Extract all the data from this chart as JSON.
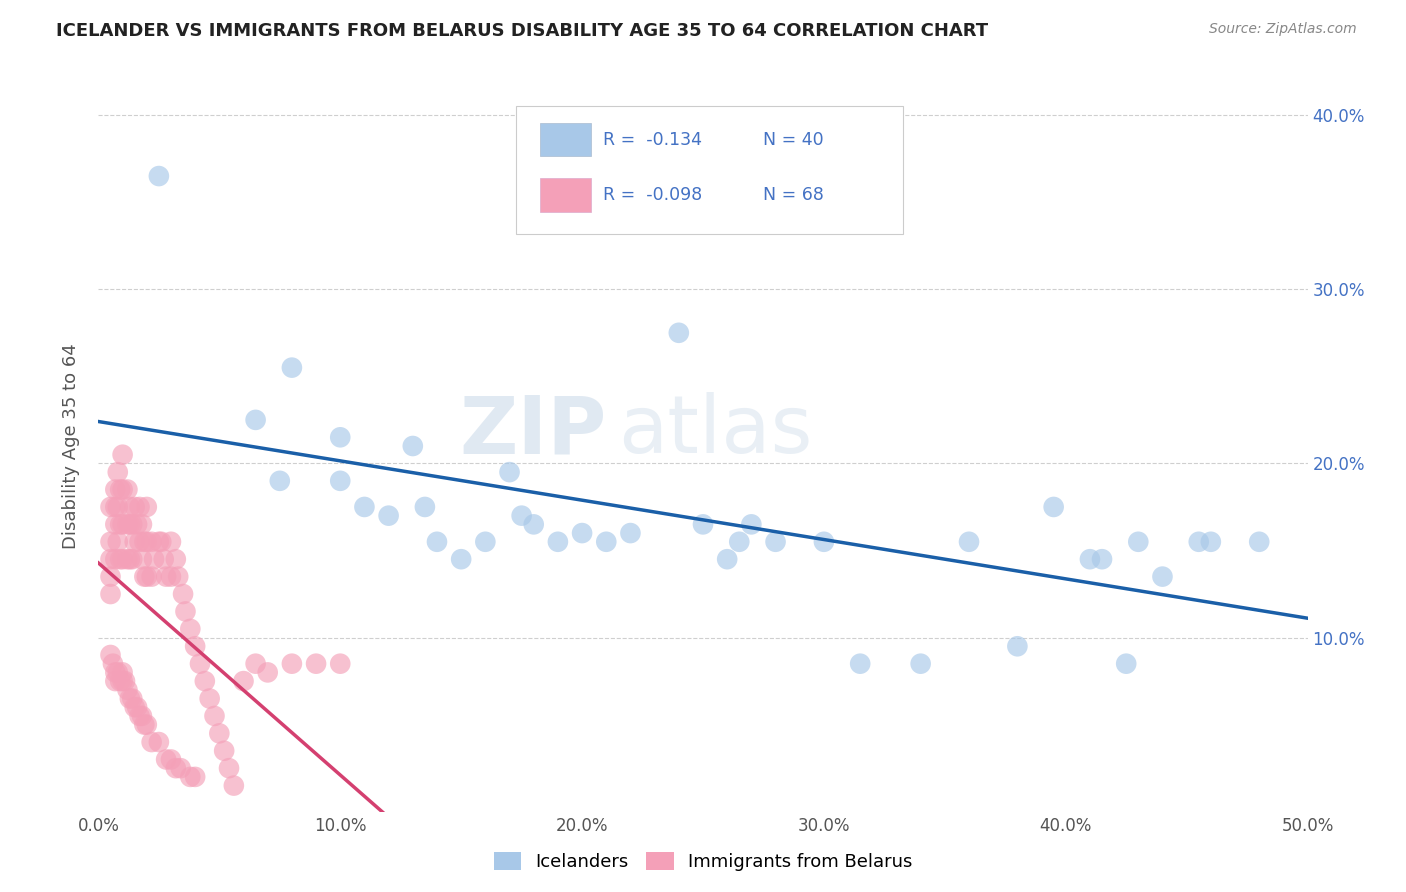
{
  "title": "ICELANDER VS IMMIGRANTS FROM BELARUS DISABILITY AGE 35 TO 64 CORRELATION CHART",
  "source_text": "Source: ZipAtlas.com",
  "ylabel": "Disability Age 35 to 64",
  "xlim": [
    0.0,
    0.5
  ],
  "ylim": [
    0.0,
    0.42
  ],
  "xtick_vals": [
    0.0,
    0.1,
    0.2,
    0.3,
    0.4,
    0.5
  ],
  "ytick_vals": [
    0.1,
    0.2,
    0.3,
    0.4
  ],
  "legend_r1": "R =  -0.134",
  "legend_n1": "N = 40",
  "legend_r2": "R =  -0.098",
  "legend_n2": "N = 68",
  "legend_label1": "Icelanders",
  "legend_label2": "Immigrants from Belarus",
  "blue_color": "#a8c8e8",
  "pink_color": "#f4a0b8",
  "blue_line_color": "#1a5fa8",
  "pink_line_color": "#d44070",
  "text_color": "#4472c4",
  "watermark_zip": "ZIP",
  "watermark_atlas": "atlas",
  "icelanders_x": [
    0.025,
    0.065,
    0.075,
    0.08,
    0.1,
    0.1,
    0.11,
    0.12,
    0.13,
    0.135,
    0.14,
    0.15,
    0.16,
    0.17,
    0.175,
    0.18,
    0.19,
    0.2,
    0.21,
    0.22,
    0.24,
    0.25,
    0.26,
    0.265,
    0.27,
    0.28,
    0.3,
    0.315,
    0.34,
    0.36,
    0.38,
    0.395,
    0.41,
    0.415,
    0.425,
    0.43,
    0.44,
    0.455,
    0.46,
    0.48
  ],
  "icelanders_y": [
    0.365,
    0.225,
    0.19,
    0.255,
    0.215,
    0.19,
    0.175,
    0.17,
    0.21,
    0.175,
    0.155,
    0.145,
    0.155,
    0.195,
    0.17,
    0.165,
    0.155,
    0.16,
    0.155,
    0.16,
    0.275,
    0.165,
    0.145,
    0.155,
    0.165,
    0.155,
    0.155,
    0.085,
    0.085,
    0.155,
    0.095,
    0.175,
    0.145,
    0.145,
    0.085,
    0.155,
    0.135,
    0.155,
    0.155,
    0.155
  ],
  "belarus_x": [
    0.005,
    0.005,
    0.005,
    0.005,
    0.005,
    0.007,
    0.007,
    0.007,
    0.007,
    0.008,
    0.008,
    0.008,
    0.009,
    0.009,
    0.009,
    0.01,
    0.01,
    0.01,
    0.01,
    0.012,
    0.012,
    0.012,
    0.013,
    0.013,
    0.013,
    0.014,
    0.014,
    0.015,
    0.015,
    0.016,
    0.017,
    0.017,
    0.018,
    0.018,
    0.019,
    0.019,
    0.02,
    0.02,
    0.02,
    0.022,
    0.022,
    0.023,
    0.025,
    0.026,
    0.027,
    0.028,
    0.03,
    0.03,
    0.032,
    0.033,
    0.035,
    0.036,
    0.038,
    0.04,
    0.042,
    0.044,
    0.046,
    0.048,
    0.05,
    0.052,
    0.054,
    0.056,
    0.06,
    0.065,
    0.07,
    0.08,
    0.09,
    0.1
  ],
  "belarus_y": [
    0.175,
    0.155,
    0.145,
    0.135,
    0.125,
    0.185,
    0.175,
    0.165,
    0.145,
    0.195,
    0.175,
    0.155,
    0.185,
    0.165,
    0.145,
    0.205,
    0.185,
    0.165,
    0.145,
    0.185,
    0.165,
    0.145,
    0.175,
    0.165,
    0.145,
    0.165,
    0.145,
    0.175,
    0.155,
    0.165,
    0.175,
    0.155,
    0.165,
    0.145,
    0.155,
    0.135,
    0.175,
    0.155,
    0.135,
    0.155,
    0.135,
    0.145,
    0.155,
    0.155,
    0.145,
    0.135,
    0.155,
    0.135,
    0.145,
    0.135,
    0.125,
    0.115,
    0.105,
    0.095,
    0.085,
    0.075,
    0.065,
    0.055,
    0.045,
    0.035,
    0.025,
    0.015,
    0.075,
    0.085,
    0.08,
    0.085,
    0.085,
    0.085
  ],
  "belarus_extra_x": [
    0.005,
    0.006,
    0.007,
    0.007,
    0.008,
    0.009,
    0.01,
    0.01,
    0.011,
    0.012,
    0.013,
    0.014,
    0.015,
    0.016,
    0.017,
    0.018,
    0.019,
    0.02,
    0.022,
    0.025,
    0.028,
    0.03,
    0.032,
    0.034,
    0.038,
    0.04
  ],
  "belarus_extra_y": [
    0.09,
    0.085,
    0.08,
    0.075,
    0.08,
    0.075,
    0.08,
    0.075,
    0.075,
    0.07,
    0.065,
    0.065,
    0.06,
    0.06,
    0.055,
    0.055,
    0.05,
    0.05,
    0.04,
    0.04,
    0.03,
    0.03,
    0.025,
    0.025,
    0.02,
    0.02
  ]
}
